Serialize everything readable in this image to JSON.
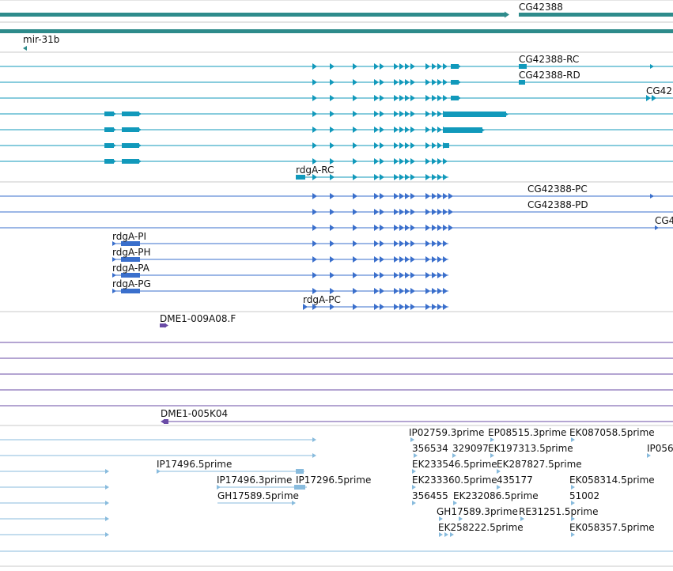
{
  "colors": {
    "gene": "#2e8b8b",
    "transcript": "#1199bb",
    "protein": "#3a6fcc",
    "genomic_clone": "#6a4ba6",
    "est": "#88bbdd",
    "separator": "#c8c8c8"
  },
  "labels": {
    "gene_cg42388": "CG42388",
    "mir31b": "mir-31b",
    "cg42388_rc": "CG42388-RC",
    "cg42388_rd": "CG42388-RD",
    "cg42_trunc": "CG42",
    "rdga_rc": "rdgA-RC",
    "cg42388_pc": "CG42388-PC",
    "cg42388_pd": "CG42388-PD",
    "cg4_trunc": "CG4",
    "rdga_pi": "rdgA-PI",
    "rdga_ph": "rdgA-PH",
    "rdga_pa": "rdgA-PA",
    "rdga_pg": "rdgA-PG",
    "rdga_pc": "rdgA-PC",
    "dme1_009a08f": "DME1-009A08.F",
    "dme1_005k04": "DME1-005K04",
    "ip02759": "IP02759.3prime",
    "ep08515": "EP08515.3prime",
    "ek087058": "EK087058.5prime",
    "n356534": "356534",
    "n329097": "329097",
    "ek197313": "EK197313.5prime",
    "ip056": "IP056",
    "ip17496_5": "IP17496.5prime",
    "ek233546": "EK233546.5prime",
    "ek287827": "EK287827.5prime",
    "ip17496_3": "IP17496.3prime",
    "ip17296": "IP17296.5prime",
    "ek233360": "EK233360.5prime",
    "n435177": "435177",
    "ek058314": "EK058314.5prime",
    "gh17589_5": "GH17589.5prime",
    "n356455": "356455",
    "ek232086": "EK232086.5prime",
    "n51002": "51002",
    "gh17589_3": "GH17589.3prime",
    "re31251": "RE31251.5prime",
    "ek258222": "EK258222.5prime",
    "ek058357": "EK058357.5prime"
  }
}
